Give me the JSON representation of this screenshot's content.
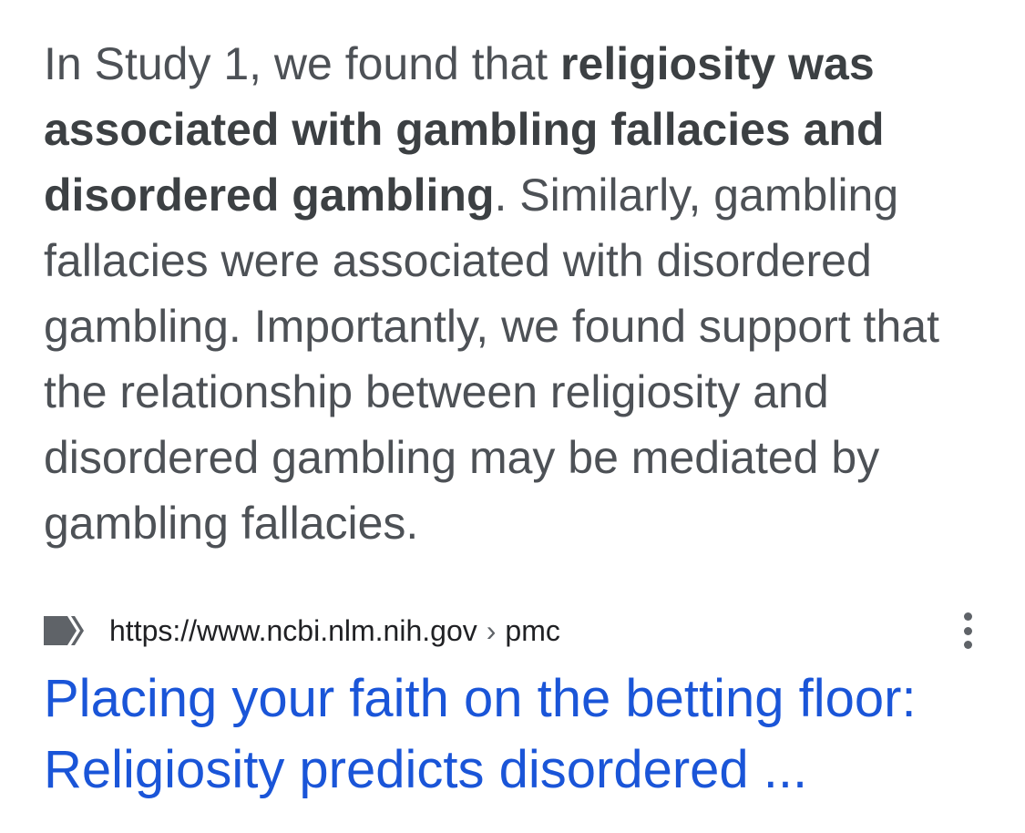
{
  "snippet": {
    "text_1": "In Study 1, we found that ",
    "bold_1": "religiosity was associated with gambling fallacies and disordered gambling",
    "text_2": ". Similarly, gambling fallacies were associated with disordered gambling. Importantly, we found support that the relationship between religiosity and disordered gambling may be mediated by gambling fallacies."
  },
  "result": {
    "favicon": "ncbi-logo-icon",
    "url_base": "https://www.ncbi.nlm.nih.gov",
    "url_separator": "›",
    "url_path": "pmc",
    "menu_icon": "more-vertical-icon",
    "title": "Placing your faith on the betting floor: Religiosity predicts disordered ..."
  },
  "colors": {
    "snippet_text": "#4d5156",
    "title_link": "#1a55d8",
    "favicon": "#5f6368"
  }
}
